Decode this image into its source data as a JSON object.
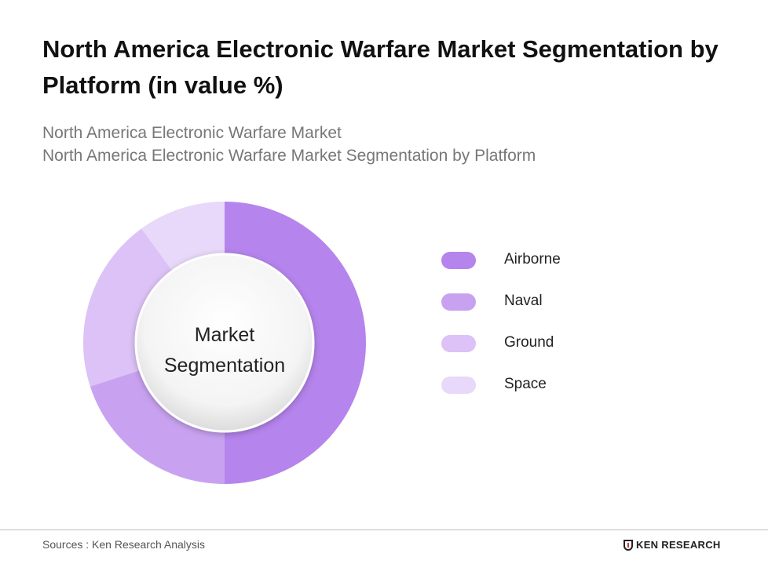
{
  "title": "North America Electronic Warfare Market Segmentation by Platform (in value %)",
  "subtitle_1": "North America Electronic Warfare Market",
  "subtitle_2": "North America Electronic Warfare Market Segmentation by Platform",
  "chart_data": {
    "type": "pie",
    "variant": "donut",
    "center_label": "Market Segmentation",
    "center_label_lines": [
      "Market",
      "Segmentation"
    ],
    "categories": [
      "Airborne",
      "Naval",
      "Ground",
      "Space"
    ],
    "values": [
      50,
      20,
      20,
      10
    ],
    "colors": [
      "#b584ec",
      "#c8a2f0",
      "#dcc2f6",
      "#e8d8f9"
    ],
    "legend_position": "right"
  },
  "footer": {
    "source": "Sources : Ken Research Analysis",
    "logo_text": "KEN RESEARCH"
  }
}
